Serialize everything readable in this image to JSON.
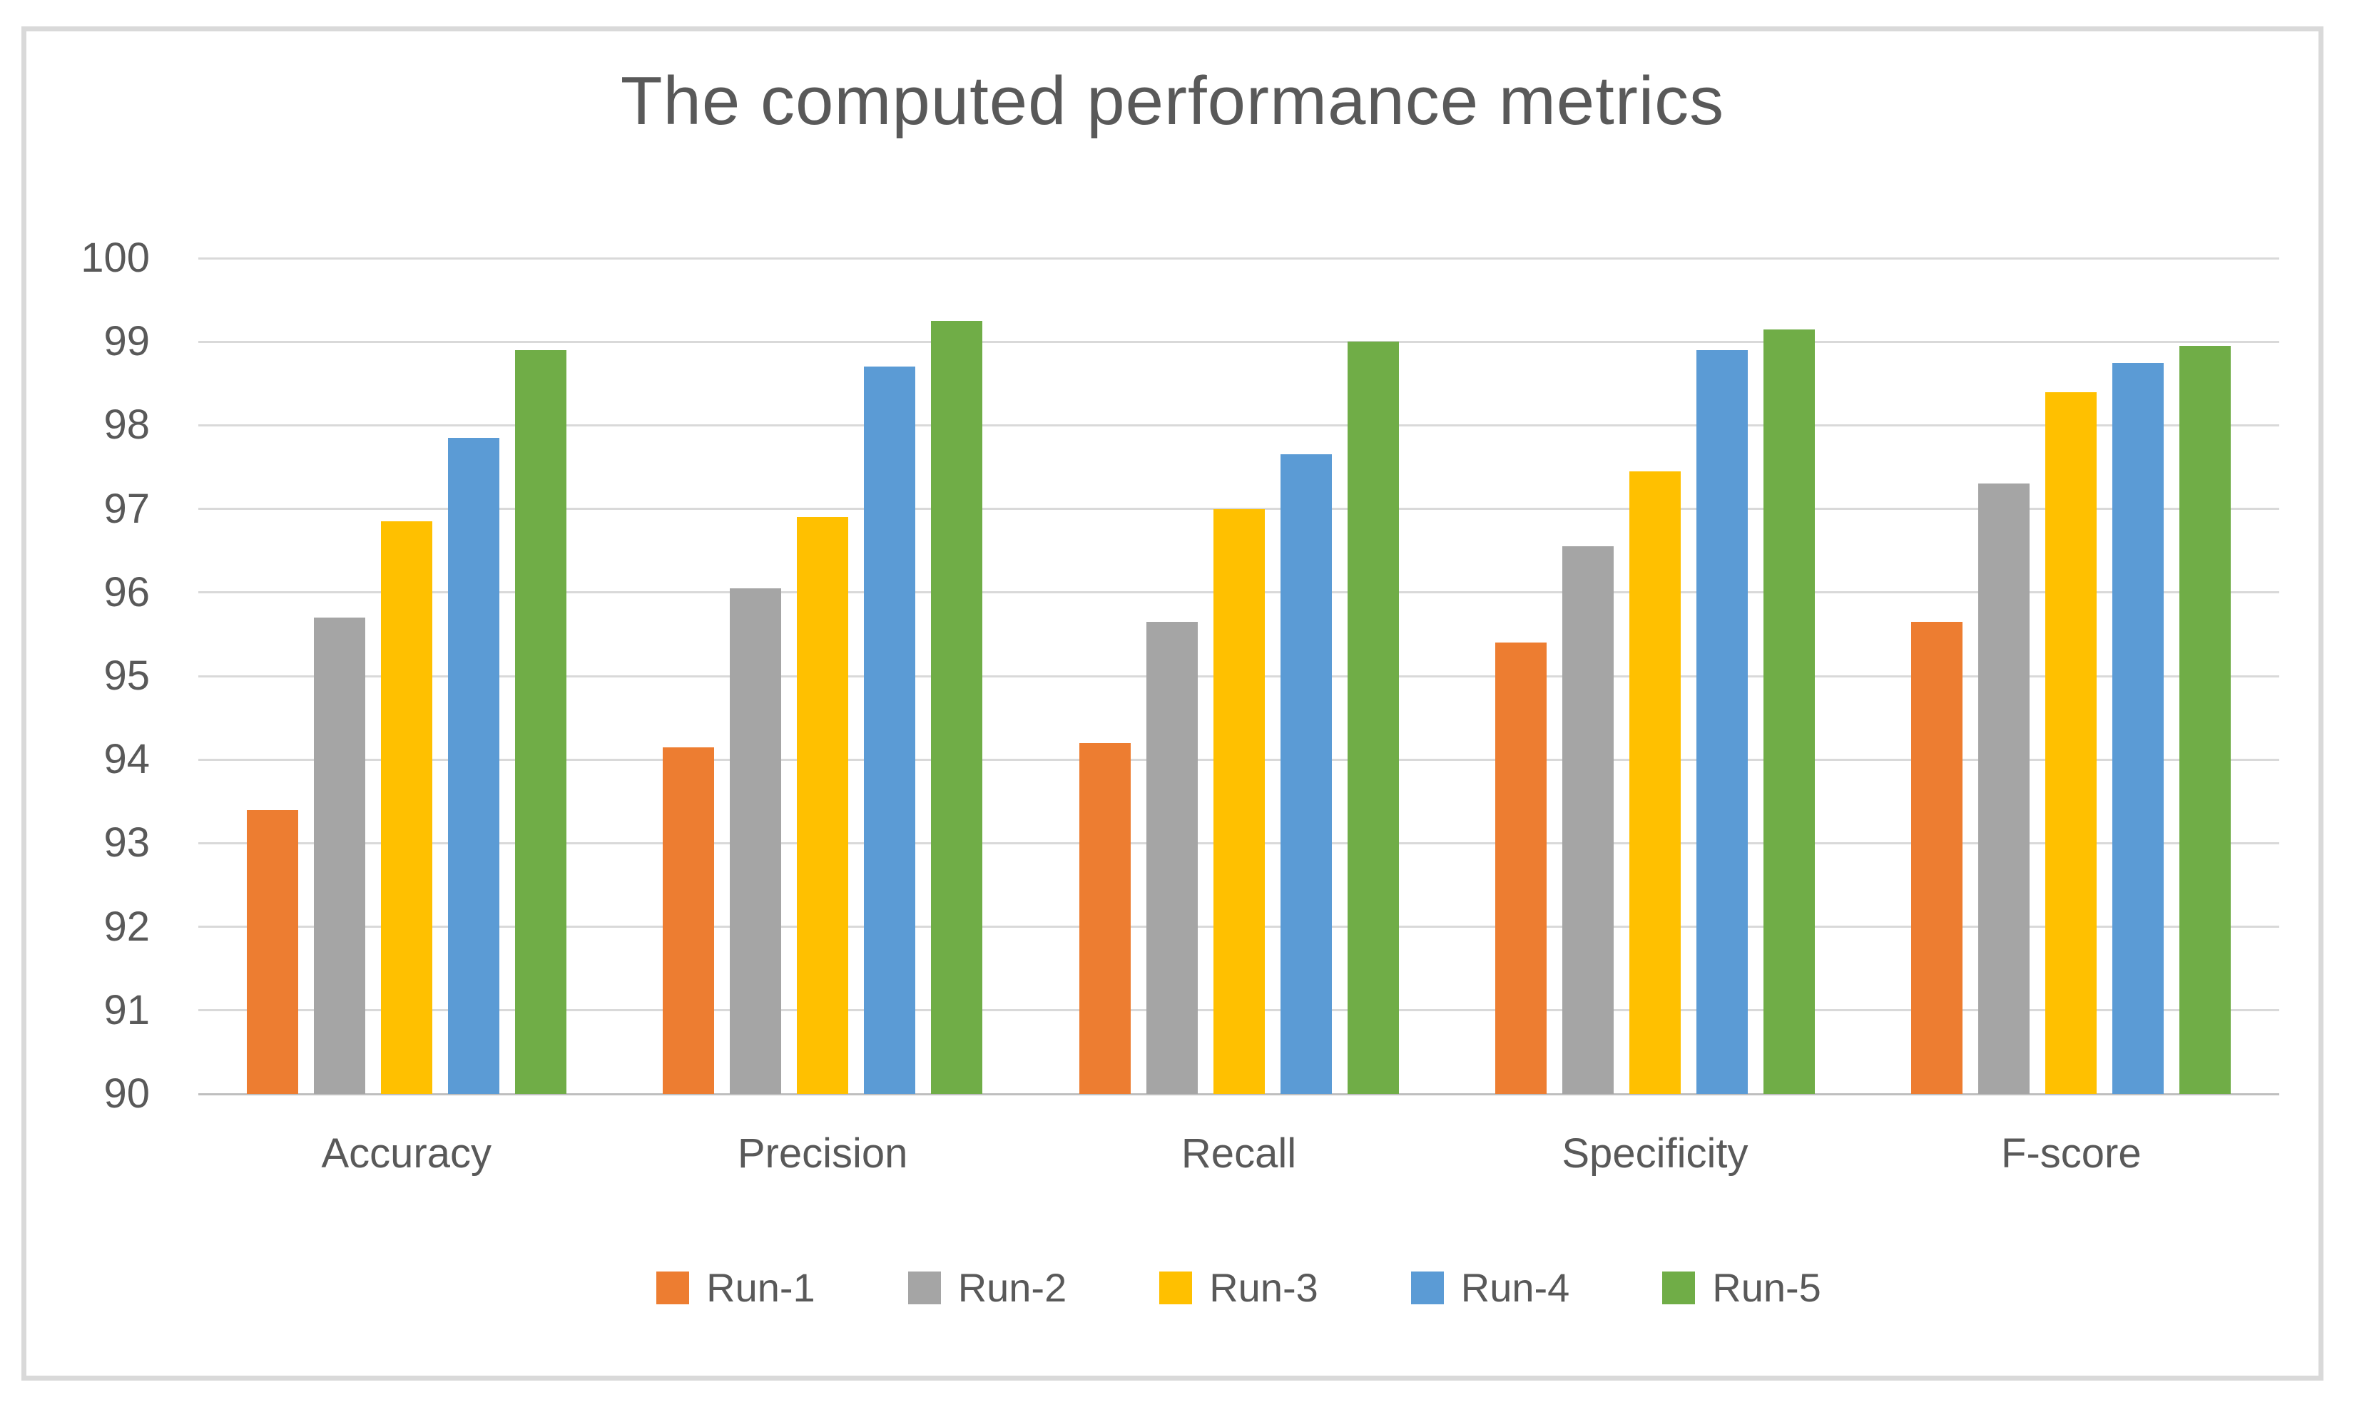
{
  "title": "The computed performance metrics",
  "styles": {
    "background": "#FFFFFF",
    "text_color": "#595959",
    "gridline_color": "#D9D9D9",
    "axis_line_color": "#BFBFBF",
    "border_color": "#D9D9D9"
  },
  "chart_data": {
    "type": "bar",
    "title": "The computed performance metrics",
    "categories": [
      "Accuracy",
      "Precision",
      "Recall",
      "Specificity",
      "F-score"
    ],
    "series": [
      {
        "name": "Run-1",
        "color": "#ED7D31",
        "values": [
          93.4,
          94.15,
          94.2,
          95.4,
          95.65
        ]
      },
      {
        "name": "Run-2",
        "color": "#A5A5A5",
        "values": [
          95.7,
          96.05,
          95.65,
          96.55,
          97.3
        ]
      },
      {
        "name": "Run-3",
        "color": "#FFC000",
        "values": [
          96.85,
          96.9,
          97.0,
          97.45,
          98.4
        ]
      },
      {
        "name": "Run-4",
        "color": "#5B9BD5",
        "values": [
          97.85,
          98.7,
          97.65,
          98.9,
          98.75
        ]
      },
      {
        "name": "Run-5",
        "color": "#70AD47",
        "values": [
          98.9,
          99.25,
          99.0,
          99.15,
          98.95
        ]
      }
    ],
    "ylim": [
      90,
      100
    ],
    "ytick_step": 1,
    "yticks": [
      100,
      99,
      98,
      97,
      96,
      95,
      94,
      93,
      92,
      91,
      90
    ],
    "grid": true,
    "legend_position": "bottom",
    "legend_labels": [
      "Run-1",
      "Run-2",
      "Run-3",
      "Run-4",
      "Run-5"
    ]
  }
}
